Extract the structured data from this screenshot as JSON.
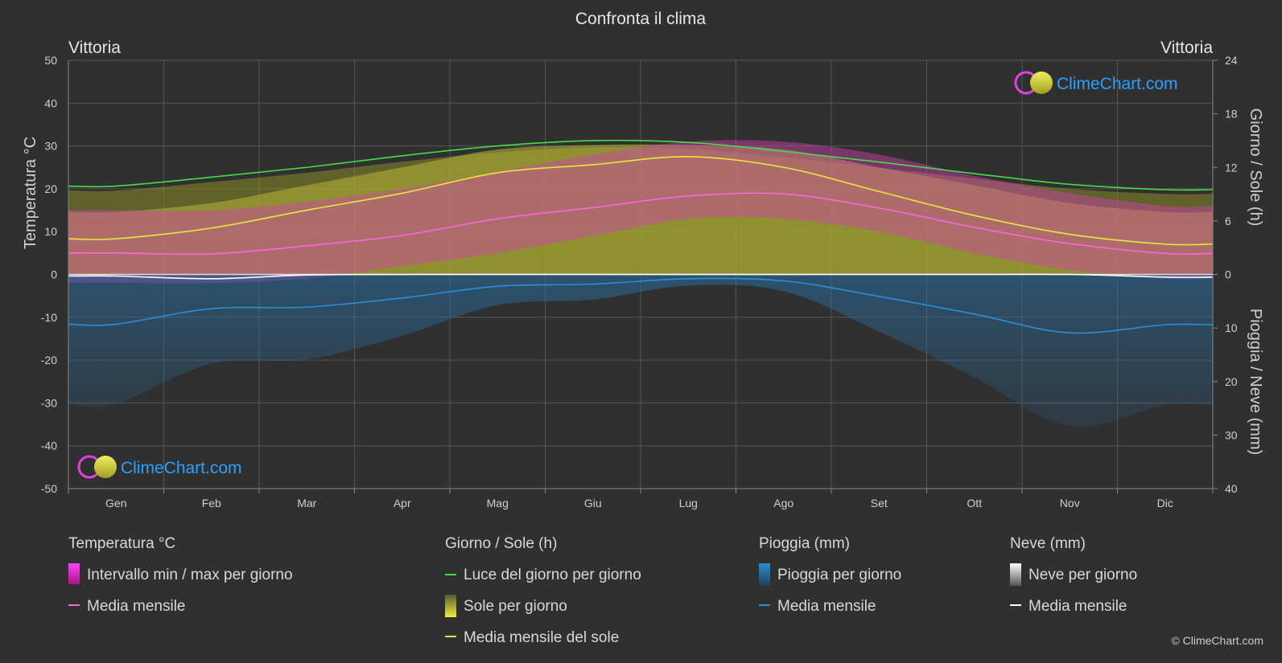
{
  "page": {
    "title": "Confronta il clima",
    "copyright": "© ClimeChart.com"
  },
  "locations": {
    "left": "Vittoria",
    "right": "Vittoria"
  },
  "logo": {
    "text": "ClimeChart.com"
  },
  "colors": {
    "background": "#303030",
    "daylight": "#44dd44",
    "sunshine_line": "#e8e83a",
    "sunshine_band": "#b8b83a",
    "temp_band": "#e040c0",
    "temp_mean": "#ff66dd",
    "rain": "#2a8fd8",
    "snow": "#ffffff",
    "logo_text": "#2aa0ff"
  },
  "chart_data": {
    "type": "line",
    "title": "Confronta il clima",
    "categories": [
      "Gen",
      "Feb",
      "Mar",
      "Apr",
      "Mag",
      "Giu",
      "Lug",
      "Ago",
      "Set",
      "Ott",
      "Nov",
      "Dic"
    ],
    "left_axis": {
      "label": "Temperatura °C",
      "min": -50,
      "max": 50,
      "ticks": [
        50,
        40,
        30,
        20,
        10,
        0,
        -10,
        -20,
        -30,
        -40,
        -50
      ]
    },
    "right_axis_top": {
      "label": "Giorno / Sole (h)",
      "min": 0,
      "max": 24,
      "ticks": [
        24,
        18,
        12,
        6,
        0
      ]
    },
    "right_axis_bottom": {
      "label": "Pioggia / Neve (mm)",
      "min": 0,
      "max": 40,
      "ticks": [
        0,
        10,
        20,
        30,
        40
      ]
    },
    "grid": true,
    "series": [
      {
        "name": "Luce del giorno per giorno",
        "axis": "hours",
        "values": [
          9.9,
          10.9,
          12.0,
          13.3,
          14.4,
          15.0,
          14.8,
          13.8,
          12.6,
          11.3,
          10.1,
          9.5
        ]
      },
      {
        "name": "Media mensile del sole",
        "axis": "hours",
        "values": [
          4.0,
          5.2,
          7.2,
          9.1,
          11.4,
          12.3,
          13.2,
          12.0,
          9.3,
          6.6,
          4.5,
          3.4
        ]
      },
      {
        "name": "Media mensile",
        "group": "Temperatura °C",
        "axis": "temperature",
        "values": [
          5.0,
          4.8,
          6.7,
          9.1,
          13.0,
          15.6,
          18.3,
          18.8,
          15.5,
          11.0,
          7.2,
          4.9
        ]
      },
      {
        "name": "Media mensile",
        "group": "Pioggia (mm)",
        "axis": "precip",
        "values": [
          9.3,
          6.4,
          6.1,
          4.4,
          2.2,
          1.8,
          0.8,
          1.2,
          4.1,
          7.4,
          10.9,
          9.4
        ]
      },
      {
        "name": "Media mensile",
        "group": "Neve (mm)",
        "axis": "precip",
        "values": [
          0.3,
          0.8,
          0.1,
          0,
          0,
          0,
          0,
          0,
          0,
          0,
          0,
          0.5
        ]
      }
    ],
    "bands": {
      "temperature_max": [
        15,
        15,
        17,
        20,
        24,
        28,
        31,
        31,
        28,
        23,
        19,
        16
      ],
      "temperature_min": [
        -2,
        -2,
        -1,
        2,
        5,
        9,
        13,
        13,
        10,
        5,
        1,
        -1
      ],
      "sunshine_range": [
        7,
        8,
        10,
        12,
        14,
        14.5,
        14.5,
        14,
        12,
        10,
        8,
        7
      ]
    }
  },
  "legend": {
    "groups": [
      {
        "header": "Temperatura °C",
        "items": [
          "Intervallo min / max per giorno",
          "Media mensile"
        ]
      },
      {
        "header": "Giorno / Sole (h)",
        "items": [
          "Luce del giorno per giorno",
          "Sole per giorno",
          "Media mensile del sole"
        ]
      },
      {
        "header": "Pioggia (mm)",
        "items": [
          "Pioggia per giorno",
          "Media mensile"
        ]
      },
      {
        "header": "Neve (mm)",
        "items": [
          "Neve per giorno",
          "Media mensile"
        ]
      }
    ]
  }
}
